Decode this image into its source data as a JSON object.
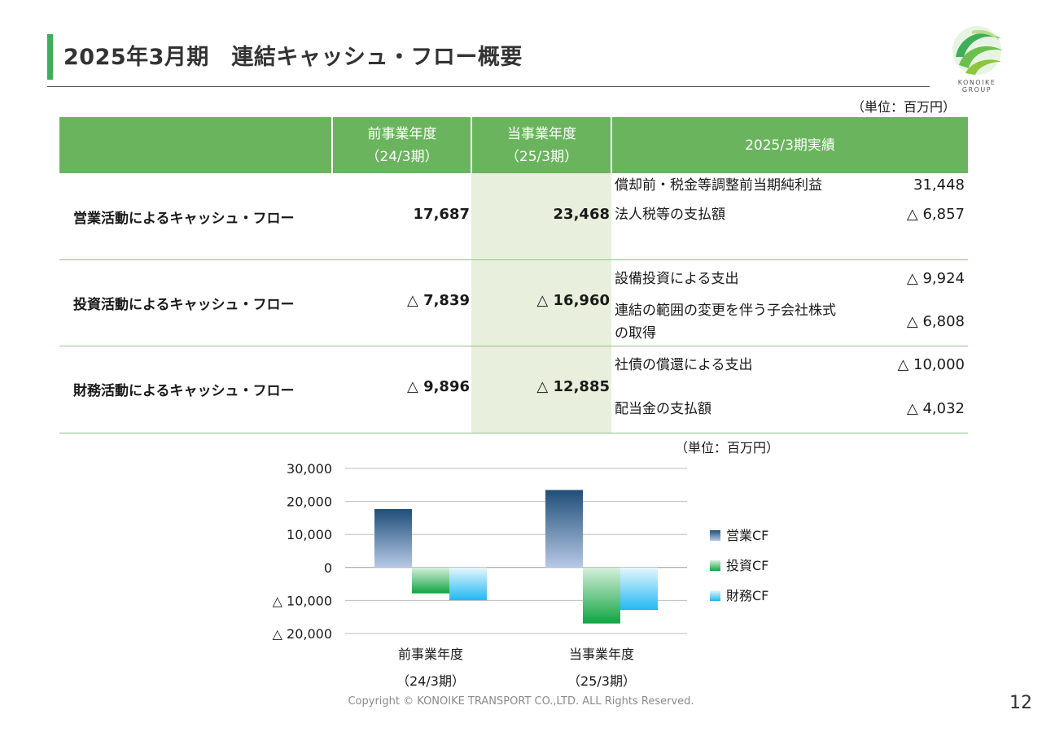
{
  "title": "2025年3月期　連結キャッシュ・フロー概要",
  "logo": {
    "name": "KONOIKE GROUP",
    "line1": "KONOIKE",
    "line2": "GROUP",
    "colors": [
      "#3fae5a",
      "#8cc63f"
    ]
  },
  "unit_label": "（単位：百万円）",
  "table": {
    "headers": {
      "prev_line1": "前事業年度",
      "prev_line2": "（24/3期）",
      "cur_line1": "当事業年度",
      "cur_line2": "（25/3期）",
      "detail": "2025/3期実績"
    },
    "rows": [
      {
        "label": "営業活動によるキャッシュ・フロー",
        "prev": "17,687",
        "cur": "23,468",
        "details": [
          {
            "label": "償却前・税金等調整前当期純利益",
            "value": "31,448"
          },
          {
            "label": "法人税等の支払額",
            "value": "△ 6,857"
          }
        ]
      },
      {
        "label": "投資活動によるキャッシュ・フロー",
        "prev": "△ 7,839",
        "cur": "△ 16,960",
        "details": [
          {
            "label": "設備投資による支出",
            "value": "△ 9,924"
          },
          {
            "label": "連結の範囲の変更を伴う子会社株式",
            "label2": "の取得",
            "value": "△ 6,808"
          }
        ]
      },
      {
        "label": "財務活動によるキャッシュ・フロー",
        "prev": "△ 9,896",
        "cur": "△ 12,885",
        "details": [
          {
            "label": "社債の償還による支出",
            "value": "△ 10,000"
          },
          {
            "label": "配当金の支払額",
            "value": "△ 4,032"
          }
        ]
      }
    ]
  },
  "chart_unit_label": "（単位：百万円）",
  "chart_data": {
    "type": "bar",
    "categories": [
      [
        "前事業年度",
        "（24/3期）"
      ],
      [
        "当事業年度",
        "（25/3期）"
      ]
    ],
    "series": [
      {
        "name": "営業CF",
        "values": [
          17687,
          23468
        ],
        "color": "#1f4e79"
      },
      {
        "name": "投資CF",
        "values": [
          -7839,
          -16960
        ],
        "color": "#1aa34a"
      },
      {
        "name": "財務CF",
        "values": [
          -9896,
          -12885
        ],
        "color": "#29b6f6"
      }
    ],
    "yticks": [
      30000,
      20000,
      10000,
      0,
      -10000,
      -20000
    ],
    "ytick_labels": [
      "30,000",
      "20,000",
      "10,000",
      "0",
      "△ 10,000",
      "△ 20,000"
    ],
    "ylim": [
      -20000,
      30000
    ],
    "grid": true,
    "legend": "right"
  },
  "copyright": "Copyright © KONOIKE TRANSPORT CO.,LTD.  ALL Rights Reserved.",
  "page_number": "12"
}
